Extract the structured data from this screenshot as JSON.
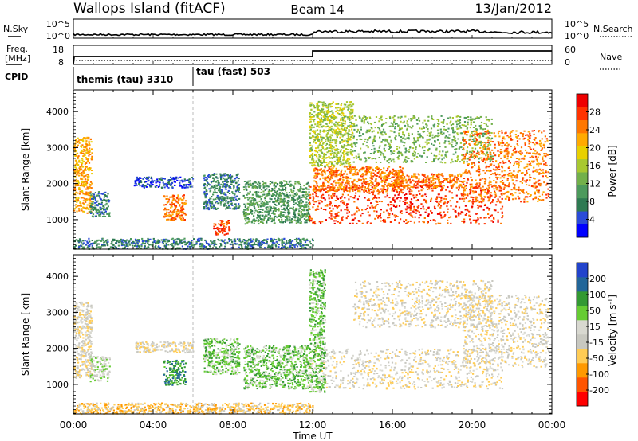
{
  "header": {
    "station": "Wallops Island (fitACF)",
    "beam": "Beam 14",
    "date": "13/Jan/2012"
  },
  "top_panels": {
    "nsky": {
      "label": "N.Sky",
      "ticks": [
        "10^5",
        "10^0"
      ]
    },
    "nsearch": {
      "label": "N.Search",
      "ticks": [
        "10^5",
        "10^0"
      ]
    },
    "freq": {
      "label_line1": "Freq.",
      "label_line2": "[MHz]",
      "ticks": [
        "18",
        "8"
      ]
    },
    "nave": {
      "label": "Nave",
      "ticks": [
        "60",
        "0"
      ]
    },
    "cpid": {
      "label": "CPID",
      "segments": [
        {
          "name": "themis (tau) 3310",
          "start_h": 0
        },
        {
          "name": "tau (fast) 503",
          "start_h": 6
        }
      ]
    }
  },
  "chart_data": [
    {
      "type": "heatmap",
      "name": "power-panel",
      "ylabel": "Slant Range [km]",
      "xlabel": "",
      "xlim_hours": [
        0,
        24
      ],
      "ylim": [
        180,
        4600
      ],
      "yticks": [
        1000,
        2000,
        3000,
        4000
      ],
      "colorbar": {
        "label": "Power [dB]",
        "ticks": [
          "28",
          "24",
          "20",
          "16",
          "12",
          "8",
          "4"
        ],
        "colors": [
          "#0000ff",
          "#2a4bd8",
          "#2e7a52",
          "#4c9a5c",
          "#72b04a",
          "#a8c830",
          "#e8d000",
          "#ffaa00",
          "#ff7700",
          "#ff3300",
          "#ee0000"
        ]
      },
      "regions": [
        {
          "t0": 0.0,
          "t1": 0.9,
          "r0": 1200,
          "r1": 3300,
          "level": 7
        },
        {
          "t0": 0.8,
          "t1": 1.8,
          "r0": 1100,
          "r1": 1800,
          "level": 2
        },
        {
          "t0": 3.0,
          "t1": 6.0,
          "r0": 1900,
          "r1": 2200,
          "level": 1
        },
        {
          "t0": 4.5,
          "t1": 5.6,
          "r0": 1000,
          "r1": 1700,
          "level": 8
        },
        {
          "t0": 6.5,
          "t1": 8.3,
          "r0": 1300,
          "r1": 2300,
          "level": 2
        },
        {
          "t0": 7.0,
          "t1": 7.8,
          "r0": 600,
          "r1": 1000,
          "level": 9
        },
        {
          "t0": 8.5,
          "t1": 11.8,
          "r0": 900,
          "r1": 2100,
          "level": 3
        },
        {
          "t0": 11.8,
          "t1": 21.5,
          "r0": 900,
          "r1": 2000,
          "level": 9
        },
        {
          "t0": 12.0,
          "t1": 16.5,
          "r0": 1800,
          "r1": 2500,
          "level": 8
        },
        {
          "t0": 11.8,
          "t1": 14.0,
          "r0": 2500,
          "r1": 4300,
          "level": 5
        },
        {
          "t0": 14.0,
          "t1": 21.0,
          "r0": 2600,
          "r1": 3900,
          "level": 4
        },
        {
          "t0": 16.0,
          "t1": 19.5,
          "r0": 1900,
          "r1": 2300,
          "level": 8
        },
        {
          "t0": 19.5,
          "t1": 23.8,
          "r0": 1500,
          "r1": 3500,
          "level": 8
        },
        {
          "t0": 0.0,
          "t1": 12.0,
          "r0": 200,
          "r1": 500,
          "level": 2
        }
      ]
    },
    {
      "type": "heatmap",
      "name": "velocity-panel",
      "ylabel": "Slant Range [km]",
      "xlabel": "Time UT",
      "xlim_hours": [
        0,
        24
      ],
      "ylim": [
        180,
        4600
      ],
      "yticks": [
        1000,
        2000,
        3000,
        4000
      ],
      "xtick_labels": [
        "00:00",
        "04:00",
        "08:00",
        "12:00",
        "16:00",
        "20:00",
        "00:00"
      ],
      "colorbar": {
        "label": "Velocity [m s^-1]",
        "ticks": [
          "200",
          "100",
          "50",
          "15",
          "-15",
          "-50",
          "-100",
          "-200"
        ],
        "colors": [
          "#ff0000",
          "#ff5500",
          "#ff9900",
          "#ffcc55",
          "#c8c8c0",
          "#d8d8d0",
          "#66cc33",
          "#339933",
          "#226699",
          "#2244cc"
        ]
      },
      "regions": [
        {
          "t0": 0.0,
          "t1": 0.9,
          "r0": 1200,
          "r1": 3300,
          "level": 4
        },
        {
          "t0": 0.8,
          "t1": 1.8,
          "r0": 1100,
          "r1": 1800,
          "level": 5
        },
        {
          "t0": 3.0,
          "t1": 6.0,
          "r0": 1900,
          "r1": 2200,
          "level": 4
        },
        {
          "t0": 4.5,
          "t1": 5.6,
          "r0": 1000,
          "r1": 1700,
          "level": 7
        },
        {
          "t0": 6.5,
          "t1": 8.3,
          "r0": 1300,
          "r1": 2300,
          "level": 6
        },
        {
          "t0": 8.5,
          "t1": 11.8,
          "r0": 900,
          "r1": 2100,
          "level": 6
        },
        {
          "t0": 11.8,
          "t1": 21.5,
          "r0": 900,
          "r1": 2000,
          "level": 4
        },
        {
          "t0": 11.8,
          "t1": 12.6,
          "r0": 800,
          "r1": 4200,
          "level": 6
        },
        {
          "t0": 14.0,
          "t1": 21.0,
          "r0": 2600,
          "r1": 3900,
          "level": 4
        },
        {
          "t0": 19.5,
          "t1": 23.8,
          "r0": 1500,
          "r1": 3500,
          "level": 4
        },
        {
          "t0": 0.0,
          "t1": 12.0,
          "r0": 200,
          "r1": 500,
          "level": 3
        }
      ]
    }
  ]
}
